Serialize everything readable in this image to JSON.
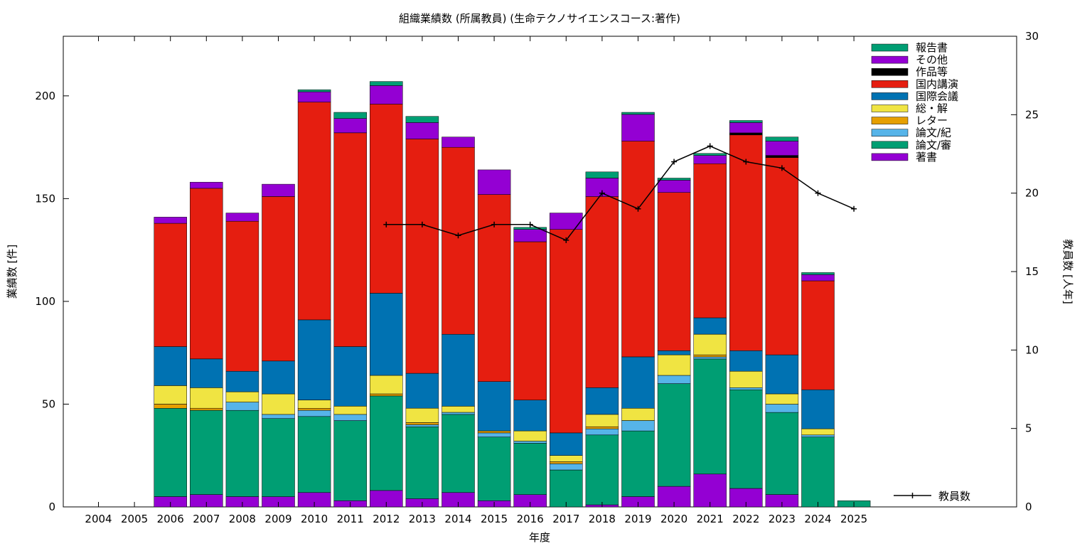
{
  "chart_data": {
    "type": "bar",
    "stacked": true,
    "title": "組織業績数 (所属教員) (生命テクノサイエンスコース:著作)",
    "xlabel": "年度",
    "ylabel": "業績数 [件]",
    "y2label": "教員数 [人年]",
    "ylim": [
      0,
      229
    ],
    "y2lim": [
      0,
      30
    ],
    "yticks": [
      "0",
      "50",
      "100",
      "150",
      "200"
    ],
    "y2ticks": [
      "0",
      "5",
      "10",
      "15",
      "20",
      "25",
      "30"
    ],
    "grid": false,
    "legend_position": "top-right",
    "categories": [
      "2004",
      "2005",
      "2006",
      "2007",
      "2008",
      "2009",
      "2010",
      "2011",
      "2012",
      "2013",
      "2014",
      "2015",
      "2016",
      "2017",
      "2018",
      "2019",
      "2020",
      "2021",
      "2022",
      "2023",
      "2024",
      "2025"
    ],
    "series": [
      {
        "name": "著書",
        "color": "#9400d3",
        "values": [
          0,
          0,
          5,
          6,
          5,
          5,
          7,
          3,
          8,
          4,
          7,
          3,
          6,
          0,
          1,
          5,
          10,
          16,
          9,
          6,
          0,
          0
        ]
      },
      {
        "name": "論文/審",
        "color": "#009e73",
        "values": [
          0,
          0,
          43,
          41,
          42,
          38,
          37,
          39,
          46,
          35,
          38,
          31,
          25,
          18,
          34,
          32,
          50,
          56,
          48,
          40,
          34,
          3
        ]
      },
      {
        "name": "論文/紀",
        "color": "#56b4e9",
        "values": [
          0,
          0,
          0,
          0,
          4,
          2,
          3,
          3,
          0,
          1,
          1,
          2,
          1,
          3,
          3,
          5,
          4,
          1,
          1,
          4,
          1,
          0
        ]
      },
      {
        "name": "レター",
        "color": "#e69f00",
        "values": [
          0,
          0,
          2,
          1,
          0,
          0,
          1,
          0,
          1,
          1,
          0,
          1,
          0,
          1,
          1,
          0,
          0,
          1,
          0,
          0,
          0,
          0
        ]
      },
      {
        "name": "総・解",
        "color": "#f0e442",
        "values": [
          0,
          0,
          9,
          10,
          5,
          10,
          4,
          4,
          9,
          7,
          3,
          0,
          5,
          3,
          6,
          6,
          10,
          10,
          8,
          5,
          3,
          0
        ]
      },
      {
        "name": "国際会議",
        "color": "#0072b2",
        "values": [
          0,
          0,
          19,
          14,
          10,
          16,
          39,
          29,
          40,
          17,
          35,
          24,
          15,
          11,
          13,
          25,
          2,
          8,
          10,
          19,
          19,
          0
        ]
      },
      {
        "name": "国内講演",
        "color": "#e51e10",
        "values": [
          0,
          0,
          60,
          83,
          73,
          80,
          106,
          104,
          92,
          114,
          91,
          91,
          77,
          99,
          93,
          105,
          77,
          75,
          105,
          96,
          53,
          0
        ]
      },
      {
        "name": "作品等",
        "color": "#000000",
        "values": [
          0,
          0,
          0,
          0,
          0,
          0,
          0,
          0,
          0,
          0,
          0,
          0,
          0,
          0,
          0,
          0,
          0,
          0,
          1,
          1,
          0,
          0
        ]
      },
      {
        "name": "その他",
        "color": "#9400d3",
        "values": [
          0,
          0,
          3,
          3,
          4,
          6,
          5,
          7,
          9,
          8,
          5,
          12,
          6,
          8,
          9,
          13,
          6,
          4,
          5,
          7,
          3,
          0
        ]
      },
      {
        "name": "報告書",
        "color": "#009e73",
        "values": [
          0,
          0,
          0,
          0,
          0,
          0,
          1,
          3,
          2,
          3,
          0,
          0,
          1,
          0,
          3,
          1,
          1,
          1,
          1,
          2,
          1,
          0
        ]
      }
    ],
    "line_series": {
      "name": "教員数",
      "axis": "y2",
      "color": "#000000",
      "x": [
        "2012",
        "2013",
        "2014",
        "2015",
        "2016",
        "2017",
        "2018",
        "2019",
        "2020",
        "2021",
        "2022",
        "2023",
        "2024",
        "2025"
      ],
      "values": [
        18,
        18,
        17.3,
        18,
        18,
        17,
        20,
        19,
        22,
        23,
        22,
        21.6,
        20,
        19
      ]
    }
  }
}
